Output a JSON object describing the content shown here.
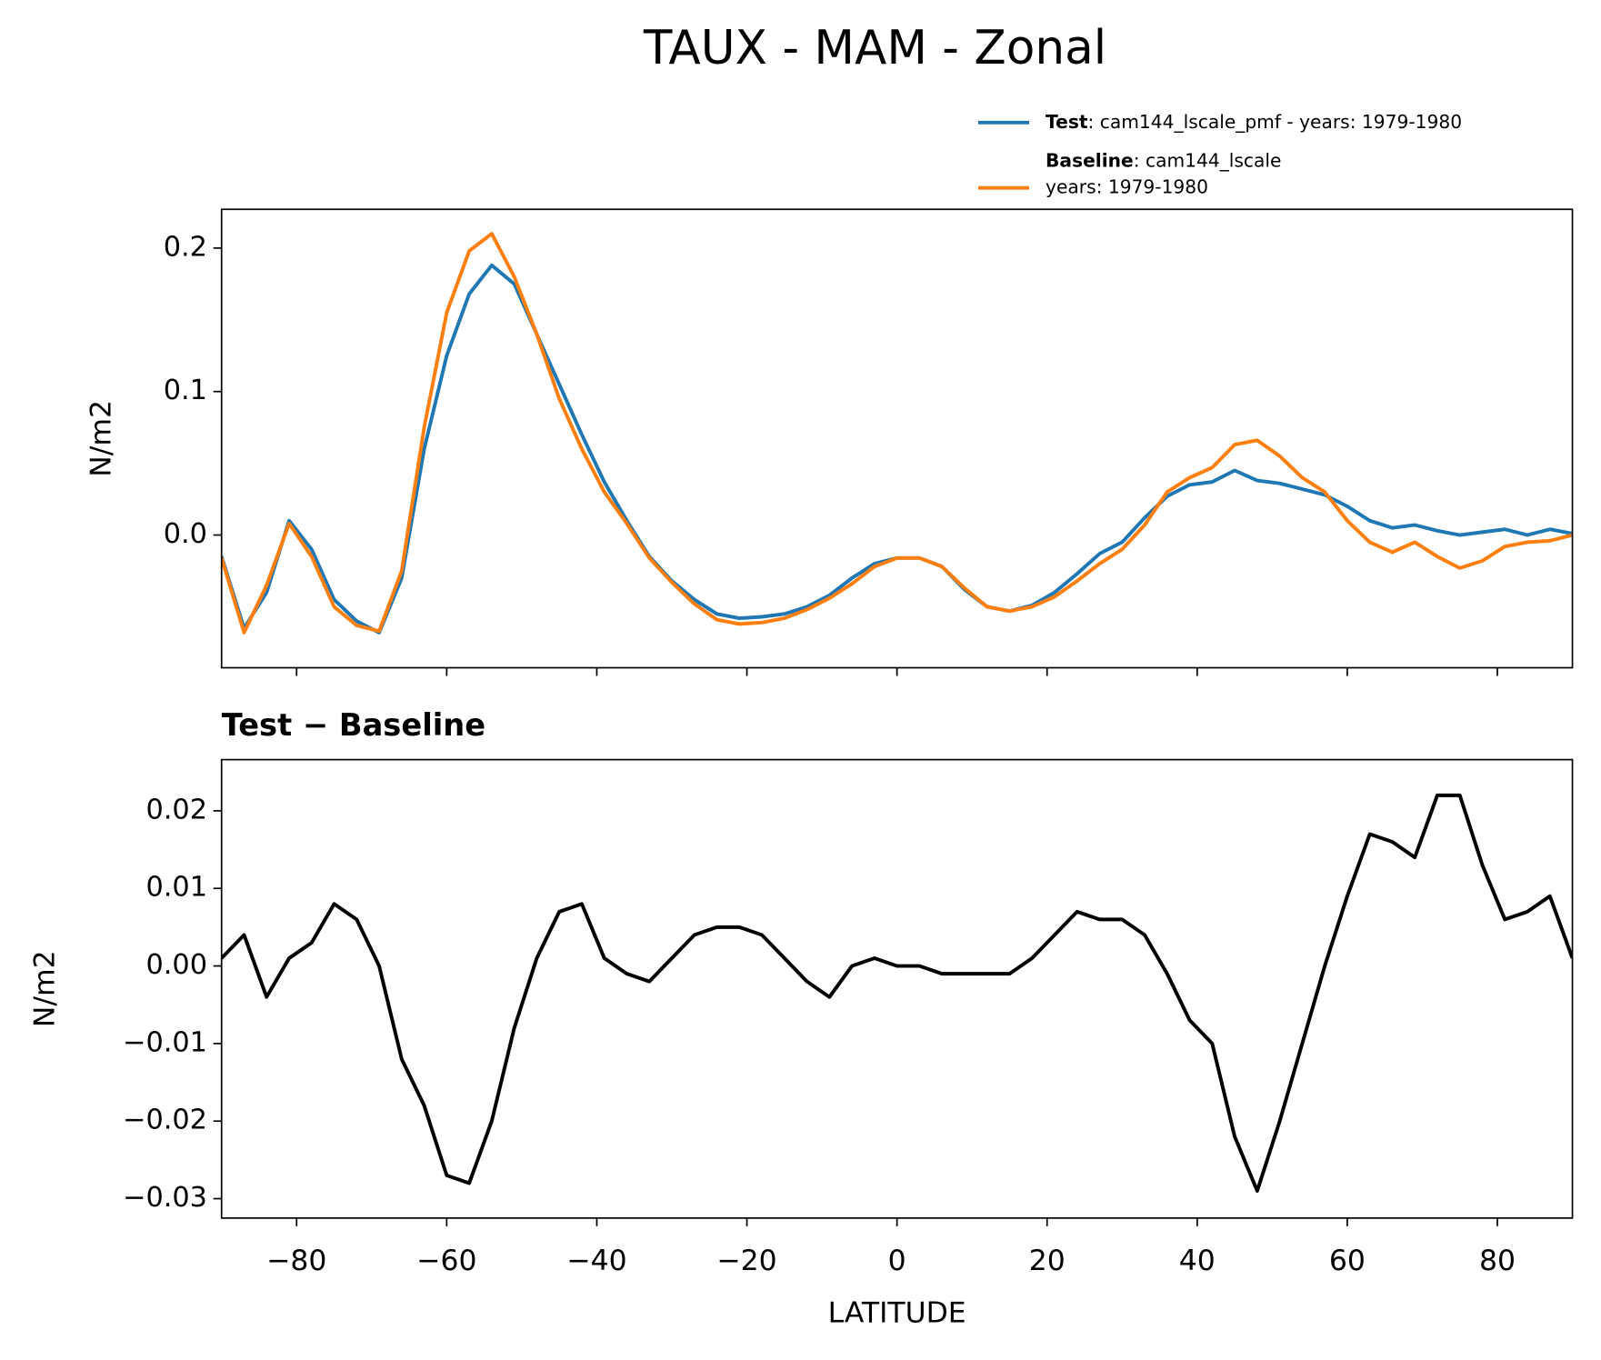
{
  "chart_data": [
    {
      "type": "line",
      "title": "TAUX - MAM - Zonal",
      "ylabel": "N/m2",
      "x": [
        -90,
        -87,
        -84,
        -81,
        -78,
        -75,
        -72,
        -69,
        -66,
        -63,
        -60,
        -57,
        -54,
        -51,
        -48,
        -45,
        -42,
        -39,
        -36,
        -33,
        -30,
        -27,
        -24,
        -21,
        -18,
        -15,
        -12,
        -9,
        -6,
        -3,
        0,
        3,
        6,
        9,
        12,
        15,
        18,
        21,
        24,
        27,
        30,
        33,
        36,
        39,
        42,
        45,
        48,
        51,
        54,
        57,
        60,
        63,
        66,
        69,
        72,
        75,
        78,
        81,
        84,
        87,
        90
      ],
      "series": [
        {
          "name": "Test",
          "legend_text": [
            ": cam144_lscale_pmf - years: 1979-1980"
          ],
          "color": "#1f77b4",
          "values": [
            -0.015,
            -0.065,
            -0.04,
            0.01,
            -0.01,
            -0.045,
            -0.06,
            -0.068,
            -0.03,
            0.06,
            0.125,
            0.168,
            0.188,
            0.175,
            0.14,
            0.105,
            0.07,
            0.037,
            0.01,
            -0.015,
            -0.032,
            -0.045,
            -0.055,
            -0.058,
            -0.057,
            -0.055,
            -0.05,
            -0.042,
            -0.03,
            -0.02,
            -0.016,
            -0.016,
            -0.022,
            -0.038,
            -0.05,
            -0.053,
            -0.049,
            -0.04,
            -0.027,
            -0.013,
            -0.005,
            0.012,
            0.027,
            0.035,
            0.037,
            0.045,
            0.038,
            0.036,
            0.032,
            0.028,
            0.02,
            0.01,
            0.005,
            0.007,
            0.003,
            0.0,
            0.002,
            0.004,
            0.0,
            0.004,
            0.001
          ]
        },
        {
          "name": "Baseline",
          "legend_text": [
            ": cam144_lscale",
            "years: 1979-1980"
          ],
          "color": "#ff7f0e",
          "values": [
            -0.016,
            -0.068,
            -0.035,
            0.008,
            -0.015,
            -0.05,
            -0.063,
            -0.067,
            -0.025,
            0.075,
            0.155,
            0.198,
            0.21,
            0.18,
            0.14,
            0.095,
            0.06,
            0.03,
            0.008,
            -0.016,
            -0.033,
            -0.048,
            -0.059,
            -0.062,
            -0.061,
            -0.058,
            -0.052,
            -0.044,
            -0.034,
            -0.022,
            -0.016,
            -0.016,
            -0.022,
            -0.037,
            -0.05,
            -0.053,
            -0.05,
            -0.043,
            -0.032,
            -0.02,
            -0.01,
            0.007,
            0.03,
            0.04,
            0.047,
            0.063,
            0.066,
            0.055,
            0.04,
            0.03,
            0.01,
            -0.005,
            -0.012,
            -0.005,
            -0.015,
            -0.023,
            -0.018,
            -0.008,
            -0.005,
            -0.004,
            0.0
          ]
        }
      ],
      "xlim": [
        -90,
        90
      ],
      "xticks": [
        -80,
        -60,
        -40,
        -20,
        0,
        20,
        40,
        60,
        80
      ],
      "ylim": [
        -0.0925,
        0.227
      ],
      "yticks": [
        {
          "value": 0,
          "label": "0.0"
        },
        0.1,
        0.2
      ],
      "legend": "upper right"
    },
    {
      "type": "line",
      "title": "Test − Baseline",
      "ylabel": "N/m2",
      "xlabel": "LATITUDE",
      "x": [
        -90,
        -87,
        -84,
        -81,
        -78,
        -75,
        -72,
        -69,
        -66,
        -63,
        -60,
        -57,
        -54,
        -51,
        -48,
        -45,
        -42,
        -39,
        -36,
        -33,
        -30,
        -27,
        -24,
        -21,
        -18,
        -15,
        -12,
        -9,
        -6,
        -3,
        0,
        3,
        6,
        9,
        12,
        15,
        18,
        21,
        24,
        27,
        30,
        33,
        36,
        39,
        42,
        45,
        48,
        51,
        54,
        57,
        60,
        63,
        66,
        69,
        72,
        75,
        78,
        81,
        84,
        87,
        90
      ],
      "series": [
        {
          "color": "#000000",
          "values": [
            0.001,
            0.004,
            -0.004,
            0.001,
            0.003,
            0.008,
            0.006,
            0.0,
            -0.012,
            -0.018,
            -0.027,
            -0.028,
            -0.02,
            -0.008,
            0.001,
            0.007,
            0.008,
            0.001,
            -0.001,
            -0.002,
            0.001,
            0.004,
            0.005,
            0.005,
            0.004,
            0.001,
            -0.002,
            -0.004,
            0.0,
            0.001,
            0.0,
            0.0,
            -0.001,
            -0.001,
            -0.001,
            -0.001,
            0.001,
            0.004,
            0.007,
            0.006,
            0.006,
            0.004,
            -0.001,
            -0.007,
            -0.01,
            -0.022,
            -0.029,
            -0.02,
            -0.01,
            0.0,
            0.009,
            0.017,
            0.016,
            0.014,
            0.022,
            0.022,
            0.013,
            0.006,
            0.007,
            0.009,
            0.001
          ]
        }
      ],
      "xlim": [
        -90,
        90
      ],
      "xticks": [
        {
          "value": -80,
          "label": "−80"
        },
        {
          "value": -60,
          "label": "−60"
        },
        {
          "value": -40,
          "label": "−40"
        },
        {
          "value": -20,
          "label": "−20"
        },
        0,
        20,
        40,
        60,
        80
      ],
      "ylim": [
        -0.0325,
        0.0266
      ],
      "yticks": [
        {
          "value": -0.03,
          "label": "−0.03"
        },
        {
          "value": -0.02,
          "label": "−0.02"
        },
        {
          "value": -0.01,
          "label": "−0.01"
        },
        {
          "value": 0,
          "label": "0.00"
        },
        0.01,
        0.02
      ]
    }
  ]
}
